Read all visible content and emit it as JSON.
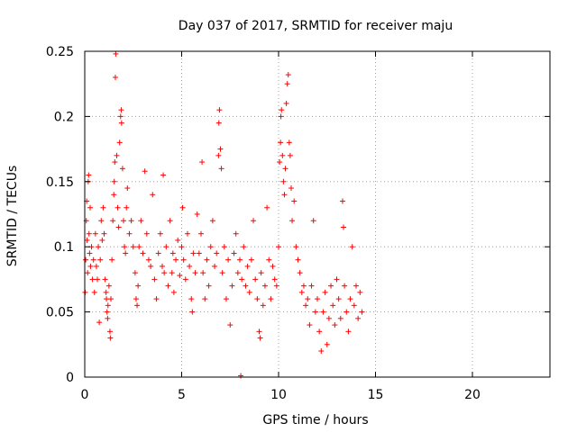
{
  "chart_data": {
    "type": "scatter",
    "title": "Day 037 of 2017, SRMTID for receiver maju",
    "xlabel": "GPS time / hours",
    "ylabel": "SRMTID / TECUs",
    "xlim": [
      0,
      24
    ],
    "ylim": [
      0,
      0.25
    ],
    "xticks": [
      0,
      5,
      10,
      15,
      20
    ],
    "xtick_labels": [
      "0",
      "5",
      "10",
      "15",
      "20"
    ],
    "yticks": [
      0,
      0.05,
      0.1,
      0.15,
      0.2,
      0.25
    ],
    "ytick_labels": [
      "0",
      "0.05",
      "0.1",
      "0.15",
      "0.2",
      "0.25"
    ],
    "grid": true,
    "marker": "+",
    "color": "#ff0000",
    "series": [
      {
        "name": "SRMTID",
        "points": [
          [
            0.02,
            0.065
          ],
          [
            0.05,
            0.09
          ],
          [
            0.08,
            0.12
          ],
          [
            0.1,
            0.135
          ],
          [
            0.12,
            0.105
          ],
          [
            0.15,
            0.08
          ],
          [
            0.18,
            0.15
          ],
          [
            0.2,
            0.155
          ],
          [
            0.22,
            0.11
          ],
          [
            0.25,
            0.095
          ],
          [
            0.28,
            0.13
          ],
          [
            0.3,
            0.085
          ],
          [
            0.35,
            0.1
          ],
          [
            0.4,
            0.075
          ],
          [
            0.45,
            0.09
          ],
          [
            0.5,
            0.065
          ],
          [
            0.55,
            0.11
          ],
          [
            0.6,
            0.085
          ],
          [
            0.65,
            0.075
          ],
          [
            0.7,
            0.1
          ],
          [
            0.75,
            0.042
          ],
          [
            0.8,
            0.09
          ],
          [
            0.85,
            0.12
          ],
          [
            0.9,
            0.105
          ],
          [
            0.95,
            0.13
          ],
          [
            1.0,
            0.11
          ],
          [
            1.05,
            0.075
          ],
          [
            1.1,
            0.065
          ],
          [
            1.12,
            0.06
          ],
          [
            1.15,
            0.05
          ],
          [
            1.18,
            0.045
          ],
          [
            1.2,
            0.055
          ],
          [
            1.25,
            0.07
          ],
          [
            1.3,
            0.035
          ],
          [
            1.32,
            0.03
          ],
          [
            1.35,
            0.06
          ],
          [
            1.4,
            0.09
          ],
          [
            1.45,
            0.12
          ],
          [
            1.5,
            0.14
          ],
          [
            1.52,
            0.15
          ],
          [
            1.55,
            0.165
          ],
          [
            1.58,
            0.23
          ],
          [
            1.6,
            0.248
          ],
          [
            1.65,
            0.17
          ],
          [
            1.7,
            0.13
          ],
          [
            1.75,
            0.115
          ],
          [
            1.8,
            0.18
          ],
          [
            1.85,
            0.2
          ],
          [
            1.88,
            0.205
          ],
          [
            1.9,
            0.195
          ],
          [
            1.95,
            0.16
          ],
          [
            2.0,
            0.12
          ],
          [
            2.05,
            0.1
          ],
          [
            2.1,
            0.095
          ],
          [
            2.15,
            0.13
          ],
          [
            2.2,
            0.145
          ],
          [
            2.3,
            0.11
          ],
          [
            2.4,
            0.12
          ],
          [
            2.5,
            0.1
          ],
          [
            2.6,
            0.08
          ],
          [
            2.65,
            0.06
          ],
          [
            2.7,
            0.055
          ],
          [
            2.75,
            0.07
          ],
          [
            2.8,
            0.1
          ],
          [
            2.9,
            0.12
          ],
          [
            3.0,
            0.095
          ],
          [
            3.1,
            0.158
          ],
          [
            3.2,
            0.11
          ],
          [
            3.3,
            0.09
          ],
          [
            3.4,
            0.085
          ],
          [
            3.5,
            0.14
          ],
          [
            3.6,
            0.075
          ],
          [
            3.7,
            0.06
          ],
          [
            3.8,
            0.095
          ],
          [
            3.9,
            0.11
          ],
          [
            4.0,
            0.085
          ],
          [
            4.05,
            0.155
          ],
          [
            4.1,
            0.08
          ],
          [
            4.2,
            0.1
          ],
          [
            4.3,
            0.07
          ],
          [
            4.4,
            0.12
          ],
          [
            4.5,
            0.08
          ],
          [
            4.55,
            0.095
          ],
          [
            4.6,
            0.065
          ],
          [
            4.7,
            0.09
          ],
          [
            4.8,
            0.105
          ],
          [
            4.9,
            0.078
          ],
          [
            5.0,
            0.1
          ],
          [
            5.05,
            0.13
          ],
          [
            5.1,
            0.09
          ],
          [
            5.2,
            0.075
          ],
          [
            5.3,
            0.11
          ],
          [
            5.4,
            0.085
          ],
          [
            5.5,
            0.06
          ],
          [
            5.55,
            0.05
          ],
          [
            5.6,
            0.095
          ],
          [
            5.7,
            0.08
          ],
          [
            5.8,
            0.125
          ],
          [
            5.9,
            0.095
          ],
          [
            6.0,
            0.11
          ],
          [
            6.05,
            0.165
          ],
          [
            6.1,
            0.08
          ],
          [
            6.2,
            0.06
          ],
          [
            6.3,
            0.09
          ],
          [
            6.4,
            0.07
          ],
          [
            6.5,
            0.1
          ],
          [
            6.6,
            0.12
          ],
          [
            6.7,
            0.085
          ],
          [
            6.8,
            0.095
          ],
          [
            6.9,
            0.17
          ],
          [
            6.92,
            0.195
          ],
          [
            6.95,
            0.205
          ],
          [
            7.0,
            0.175
          ],
          [
            7.05,
            0.16
          ],
          [
            7.1,
            0.08
          ],
          [
            7.2,
            0.1
          ],
          [
            7.3,
            0.06
          ],
          [
            7.4,
            0.09
          ],
          [
            7.5,
            0.04
          ],
          [
            7.6,
            0.07
          ],
          [
            7.7,
            0.095
          ],
          [
            7.8,
            0.11
          ],
          [
            7.9,
            0.08
          ],
          [
            8.0,
            0.09
          ],
          [
            8.05,
            0.001
          ],
          [
            8.1,
            0.075
          ],
          [
            8.2,
            0.1
          ],
          [
            8.3,
            0.07
          ],
          [
            8.4,
            0.085
          ],
          [
            8.5,
            0.065
          ],
          [
            8.6,
            0.09
          ],
          [
            8.7,
            0.12
          ],
          [
            8.8,
            0.075
          ],
          [
            8.9,
            0.06
          ],
          [
            9.0,
            0.035
          ],
          [
            9.05,
            0.03
          ],
          [
            9.1,
            0.08
          ],
          [
            9.2,
            0.055
          ],
          [
            9.3,
            0.07
          ],
          [
            9.4,
            0.13
          ],
          [
            9.5,
            0.09
          ],
          [
            9.6,
            0.06
          ],
          [
            9.7,
            0.085
          ],
          [
            9.8,
            0.075
          ],
          [
            9.9,
            0.07
          ],
          [
            10.0,
            0.1
          ],
          [
            10.05,
            0.165
          ],
          [
            10.1,
            0.18
          ],
          [
            10.12,
            0.2
          ],
          [
            10.15,
            0.205
          ],
          [
            10.2,
            0.17
          ],
          [
            10.25,
            0.15
          ],
          [
            10.3,
            0.14
          ],
          [
            10.35,
            0.16
          ],
          [
            10.4,
            0.21
          ],
          [
            10.45,
            0.225
          ],
          [
            10.5,
            0.232
          ],
          [
            10.55,
            0.18
          ],
          [
            10.6,
            0.17
          ],
          [
            10.65,
            0.145
          ],
          [
            10.7,
            0.12
          ],
          [
            10.8,
            0.135
          ],
          [
            10.9,
            0.1
          ],
          [
            11.0,
            0.09
          ],
          [
            11.1,
            0.08
          ],
          [
            11.2,
            0.065
          ],
          [
            11.3,
            0.07
          ],
          [
            11.4,
            0.055
          ],
          [
            11.5,
            0.06
          ],
          [
            11.6,
            0.04
          ],
          [
            11.7,
            0.07
          ],
          [
            11.8,
            0.12
          ],
          [
            11.9,
            0.05
          ],
          [
            12.0,
            0.06
          ],
          [
            12.1,
            0.035
          ],
          [
            12.2,
            0.02
          ],
          [
            12.3,
            0.05
          ],
          [
            12.4,
            0.065
          ],
          [
            12.5,
            0.025
          ],
          [
            12.6,
            0.045
          ],
          [
            12.7,
            0.07
          ],
          [
            12.8,
            0.055
          ],
          [
            12.9,
            0.04
          ],
          [
            13.0,
            0.075
          ],
          [
            13.1,
            0.06
          ],
          [
            13.2,
            0.045
          ],
          [
            13.3,
            0.135
          ],
          [
            13.35,
            0.115
          ],
          [
            13.4,
            0.07
          ],
          [
            13.5,
            0.05
          ],
          [
            13.6,
            0.035
          ],
          [
            13.7,
            0.06
          ],
          [
            13.8,
            0.1
          ],
          [
            13.9,
            0.055
          ],
          [
            14.0,
            0.07
          ],
          [
            14.1,
            0.045
          ],
          [
            14.2,
            0.065
          ],
          [
            14.3,
            0.05
          ]
        ]
      }
    ]
  }
}
